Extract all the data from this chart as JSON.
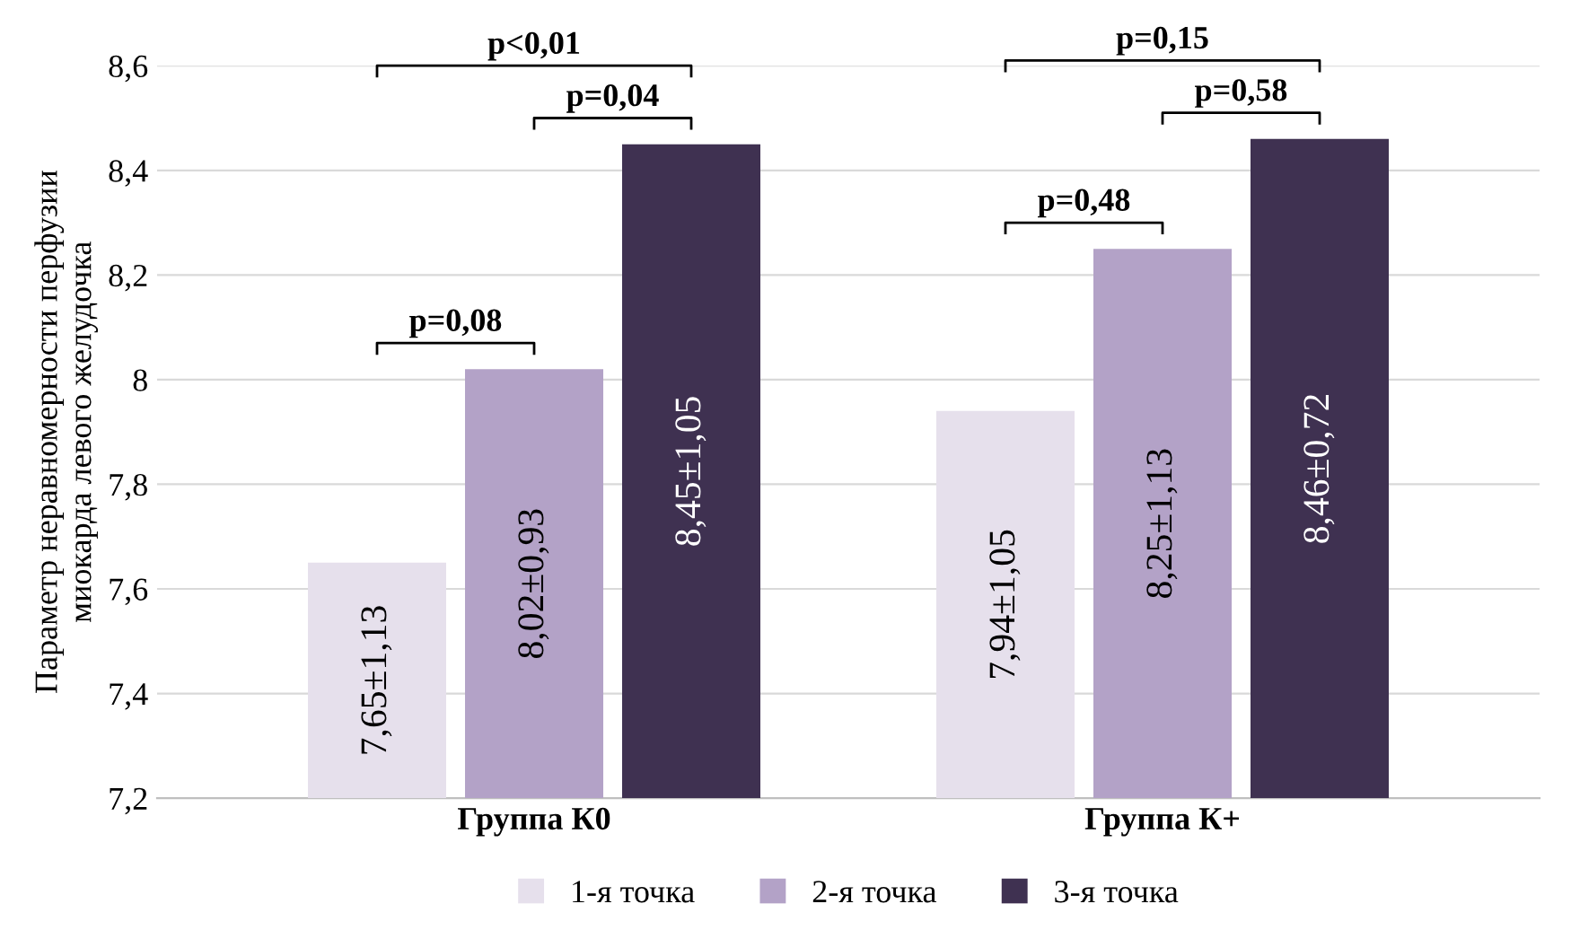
{
  "chart_data": {
    "type": "bar",
    "ylabel": "Параметр неравномерности перфузии\nмиокарда левого желудочка",
    "categories": [
      "Группа К0",
      "Группа К+"
    ],
    "series": [
      {
        "name": "1-я точка",
        "color": "#e6e0ec",
        "values": [
          7.65,
          7.94
        ],
        "value_labels": [
          "7,65±1,13",
          "7,94±1,05"
        ]
      },
      {
        "name": "2-я точка",
        "color": "#b3a2c7",
        "values": [
          8.02,
          8.25
        ],
        "value_labels": [
          "8,02±0,93",
          "8,25±1,13"
        ]
      },
      {
        "name": "3-я точка",
        "color": "#3f3151",
        "values": [
          8.45,
          8.46
        ],
        "value_labels": [
          "8,45±1,05",
          "8,46±0,72"
        ]
      }
    ],
    "ylim": [
      7.2,
      8.6
    ],
    "yticks": [
      {
        "value": 7.2,
        "label": "7,2"
      },
      {
        "value": 7.4,
        "label": "7,4"
      },
      {
        "value": 7.6,
        "label": "7,6"
      },
      {
        "value": 7.8,
        "label": "7,8"
      },
      8,
      {
        "value": 8.2,
        "label": "8,2"
      },
      {
        "value": 8.4,
        "label": "8,4"
      },
      {
        "value": 8.6,
        "label": "8,6"
      }
    ],
    "grid": "y",
    "legend": "bottom",
    "annotations": [
      "p<0,01",
      "p=0,04",
      "p=0,08",
      "p=0,15",
      "p=0,58",
      "p=0,48"
    ]
  }
}
